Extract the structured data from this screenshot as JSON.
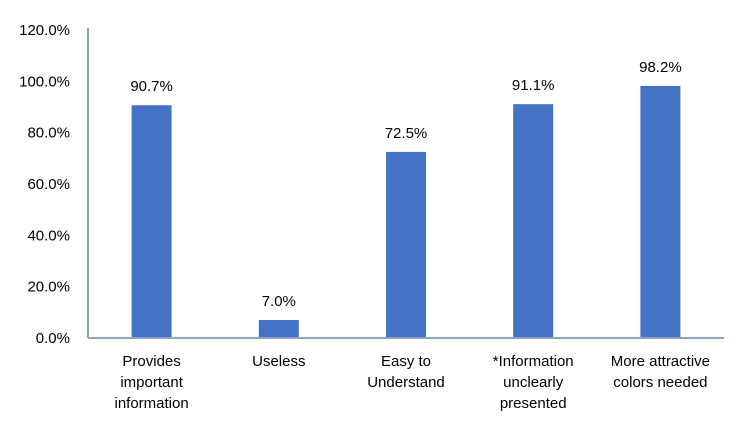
{
  "chart_data": {
    "type": "bar",
    "categories": [
      [
        "Provides",
        "important",
        "information"
      ],
      [
        "Useless"
      ],
      [
        "Easy to",
        "Understand"
      ],
      [
        "*Information",
        "unclearly",
        "presented"
      ],
      [
        "More attractive",
        "colors needed"
      ]
    ],
    "values": [
      90.7,
      7.0,
      72.5,
      91.1,
      98.2
    ],
    "data_labels": [
      "90.7%",
      "7.0%",
      "72.5%",
      "91.1%",
      "98.2%"
    ],
    "y_ticks": [
      0,
      20,
      40,
      60,
      80,
      100,
      120
    ],
    "y_tick_labels": [
      "0.0%",
      "20.0%",
      "40.0%",
      "60.0%",
      "80.0%",
      "100.0%",
      "120.0%"
    ],
    "ylim": [
      0,
      120
    ],
    "grid": false,
    "legend": "none",
    "title": "",
    "xlabel": "",
    "ylabel": "",
    "colors": {
      "bar": "#4472C4",
      "axis": "#8EA3C8"
    }
  }
}
